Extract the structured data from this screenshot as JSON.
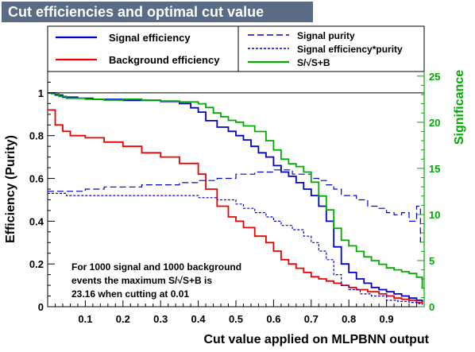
{
  "title": "Cut efficiencies and optimal cut value",
  "chart_data": {
    "type": "line",
    "xlabel": "Cut value applied on MLPBNN output",
    "ylabel": "Efficiency (Purity)",
    "y2label": "Significance",
    "xlim": [
      0,
      1
    ],
    "ylim": [
      0,
      1.1
    ],
    "y2lim": [
      0,
      25.5
    ],
    "x_ticks": [
      "0.1",
      "0.2",
      "0.3",
      "0.4",
      "0.5",
      "0.6",
      "0.7",
      "0.8",
      "0.9"
    ],
    "y_ticks": [
      "0",
      "0.2",
      "0.4",
      "0.6",
      "0.8",
      "1"
    ],
    "y2_ticks": [
      "0",
      "5",
      "10",
      "15",
      "20",
      "25"
    ],
    "reference_line_y": 1,
    "legend": [
      {
        "name": "Signal efficiency",
        "color": "#0000cc",
        "dash": "solid"
      },
      {
        "name": "Background efficiency",
        "color": "#ee0000",
        "dash": "solid"
      },
      {
        "name": "Signal purity",
        "color": "#0000cc",
        "dash": "long-dash"
      },
      {
        "name": "Signal efficiency*purity",
        "color": "#0000cc",
        "dash": "short-dash"
      },
      {
        "name": "S/√S+B",
        "color": "#00aa00",
        "dash": "solid"
      }
    ],
    "series": [
      {
        "name": "Signal efficiency",
        "color": "#0000cc",
        "axis": "left",
        "dash": "",
        "x": [
          0.0,
          0.02,
          0.04,
          0.08,
          0.12,
          0.2,
          0.3,
          0.35,
          0.38,
          0.4,
          0.42,
          0.45,
          0.48,
          0.5,
          0.52,
          0.54,
          0.56,
          0.58,
          0.6,
          0.62,
          0.64,
          0.66,
          0.68,
          0.7,
          0.72,
          0.74,
          0.76,
          0.78,
          0.8,
          0.82,
          0.84,
          0.86,
          0.88,
          0.9,
          0.92,
          0.94,
          0.96,
          0.98,
          0.995
        ],
        "y": [
          1.0,
          0.99,
          0.98,
          0.975,
          0.97,
          0.965,
          0.96,
          0.95,
          0.93,
          0.91,
          0.87,
          0.84,
          0.82,
          0.8,
          0.78,
          0.75,
          0.72,
          0.7,
          0.66,
          0.63,
          0.61,
          0.58,
          0.55,
          0.52,
          0.47,
          0.4,
          0.28,
          0.2,
          0.16,
          0.13,
          0.11,
          0.09,
          0.08,
          0.07,
          0.06,
          0.05,
          0.04,
          0.03,
          0.02
        ]
      },
      {
        "name": "Background efficiency",
        "color": "#ee0000",
        "axis": "left",
        "dash": "",
        "x": [
          0.0,
          0.02,
          0.04,
          0.06,
          0.1,
          0.15,
          0.2,
          0.25,
          0.3,
          0.35,
          0.4,
          0.42,
          0.45,
          0.48,
          0.5,
          0.52,
          0.55,
          0.58,
          0.6,
          0.62,
          0.64,
          0.66,
          0.68,
          0.7,
          0.72,
          0.74,
          0.76,
          0.78,
          0.8,
          0.82,
          0.85,
          0.88,
          0.9,
          0.92,
          0.94,
          0.96,
          0.98,
          0.995
        ],
        "y": [
          0.92,
          0.85,
          0.82,
          0.8,
          0.79,
          0.77,
          0.75,
          0.72,
          0.7,
          0.67,
          0.62,
          0.55,
          0.47,
          0.42,
          0.4,
          0.37,
          0.33,
          0.3,
          0.26,
          0.22,
          0.2,
          0.18,
          0.16,
          0.14,
          0.13,
          0.12,
          0.11,
          0.1,
          0.09,
          0.08,
          0.07,
          0.06,
          0.05,
          0.04,
          0.035,
          0.03,
          0.02,
          0.01
        ]
      },
      {
        "name": "Signal purity",
        "color": "#0000cc",
        "axis": "left",
        "dash": "8,4",
        "x": [
          0.0,
          0.05,
          0.1,
          0.15,
          0.2,
          0.25,
          0.3,
          0.35,
          0.4,
          0.45,
          0.5,
          0.55,
          0.6,
          0.65,
          0.7,
          0.72,
          0.74,
          0.76,
          0.78,
          0.8,
          0.82,
          0.85,
          0.88,
          0.9,
          0.92,
          0.94,
          0.96,
          0.98,
          0.99
        ],
        "y": [
          0.54,
          0.54,
          0.55,
          0.56,
          0.56,
          0.57,
          0.57,
          0.58,
          0.59,
          0.6,
          0.62,
          0.63,
          0.64,
          0.62,
          0.6,
          0.59,
          0.57,
          0.55,
          0.52,
          0.52,
          0.5,
          0.47,
          0.46,
          0.44,
          0.43,
          0.44,
          0.4,
          0.47,
          0.3
        ]
      },
      {
        "name": "Signal efficiency*purity",
        "color": "#0000cc",
        "axis": "left",
        "dash": "3,2",
        "x": [
          0.0,
          0.05,
          0.1,
          0.15,
          0.2,
          0.25,
          0.3,
          0.35,
          0.4,
          0.45,
          0.5,
          0.52,
          0.55,
          0.58,
          0.6,
          0.62,
          0.65,
          0.68,
          0.7,
          0.72,
          0.74,
          0.76,
          0.78,
          0.8,
          0.83,
          0.86,
          0.9,
          0.93,
          0.96,
          0.98,
          0.995
        ],
        "y": [
          0.53,
          0.52,
          0.52,
          0.52,
          0.52,
          0.52,
          0.52,
          0.52,
          0.51,
          0.5,
          0.48,
          0.46,
          0.44,
          0.42,
          0.4,
          0.38,
          0.36,
          0.33,
          0.3,
          0.26,
          0.22,
          0.15,
          0.1,
          0.08,
          0.06,
          0.05,
          0.03,
          0.025,
          0.02,
          0.015,
          0.01
        ]
      },
      {
        "name": "S/√S+B",
        "color": "#00aa00",
        "axis": "right",
        "dash": "",
        "x": [
          0.0,
          0.01,
          0.03,
          0.05,
          0.1,
          0.15,
          0.2,
          0.25,
          0.3,
          0.35,
          0.4,
          0.42,
          0.44,
          0.46,
          0.48,
          0.5,
          0.52,
          0.55,
          0.58,
          0.6,
          0.62,
          0.64,
          0.66,
          0.68,
          0.7,
          0.72,
          0.74,
          0.76,
          0.78,
          0.8,
          0.82,
          0.84,
          0.86,
          0.88,
          0.9,
          0.92,
          0.94,
          0.96,
          0.98,
          0.995
        ],
        "y": [
          23.16,
          23.1,
          22.8,
          22.6,
          22.5,
          22.4,
          22.5,
          22.4,
          22.3,
          22.2,
          22.0,
          21.6,
          21.0,
          20.6,
          20.2,
          20.0,
          19.6,
          19.0,
          18.0,
          17.0,
          16.0,
          15.5,
          15.2,
          14.6,
          13.5,
          12.0,
          10.5,
          8.5,
          7.2,
          6.6,
          6.0,
          5.4,
          5.0,
          4.6,
          4.2,
          4.0,
          3.8,
          3.6,
          3.2,
          2.0
        ]
      }
    ],
    "annotation": [
      "For 1000 signal and 1000 background",
      "events the maximum S/√S+B is",
      "23.16 when cutting at  0.01"
    ]
  }
}
